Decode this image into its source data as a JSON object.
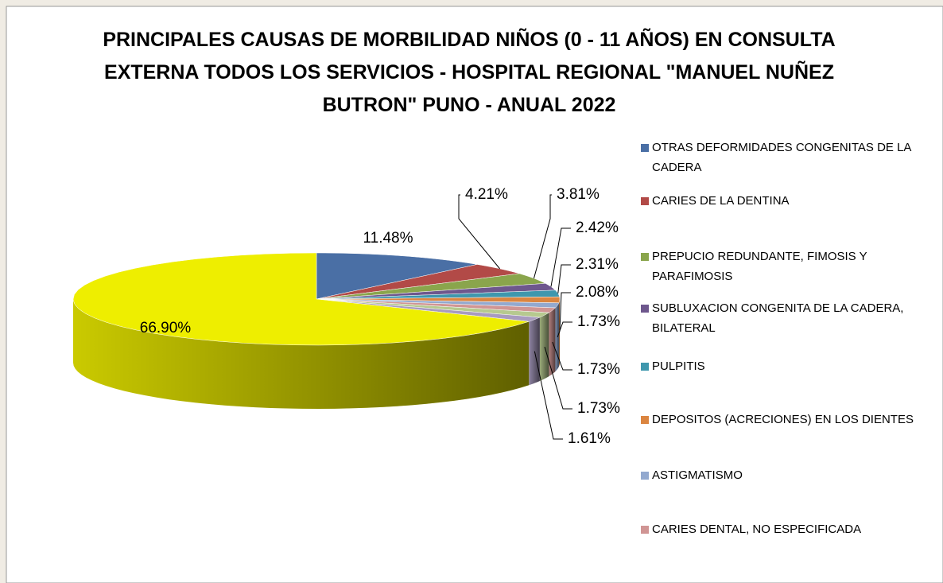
{
  "chart_data": {
    "type": "pie3d",
    "title": "PRINCIPALES CAUSAS DE MORBILIDAD NIÑOS (0 - 11 AÑOS)  EN CONSULTA EXTERNA TODOS LOS SERVICIOS - HOSPITAL REGIONAL \"MANUEL NUÑEZ BUTRON\" PUNO - ANUAL 2022",
    "categories": [
      "OTRAS DEFORMIDADES CONGENITAS DE LA CADERA",
      "CARIES DE LA DENTINA",
      "PREPUCIO REDUNDANTE, FIMOSIS Y PARAFIMOSIS",
      "SUBLUXACION CONGENITA DE LA CADERA, BILATERAL",
      "PULPITIS",
      "DEPOSITOS (ACRECIONES) EN LOS DIENTES",
      "ASTIGMATISMO",
      "CARIES DENTAL, NO ESPECIFICADA",
      null,
      null,
      null
    ],
    "values": [
      11.48,
      4.21,
      3.81,
      2.42,
      2.31,
      2.08,
      1.73,
      1.73,
      1.73,
      1.61,
      66.9
    ],
    "value_labels": [
      "11.48%",
      "4.21%",
      "3.81%",
      "2.42%",
      "2.31%",
      "2.08%",
      "1.73%",
      "1.73%",
      "1.73%",
      "1.61%",
      "66.90%"
    ],
    "colors": [
      "#4a6fa5",
      "#b24a47",
      "#8aa54c",
      "#6e578d",
      "#3f97ad",
      "#db8540",
      "#93a9cf",
      "#d09594",
      "#b6c98f",
      "#a89bbf",
      "#eeee00"
    ],
    "legend": "right"
  }
}
